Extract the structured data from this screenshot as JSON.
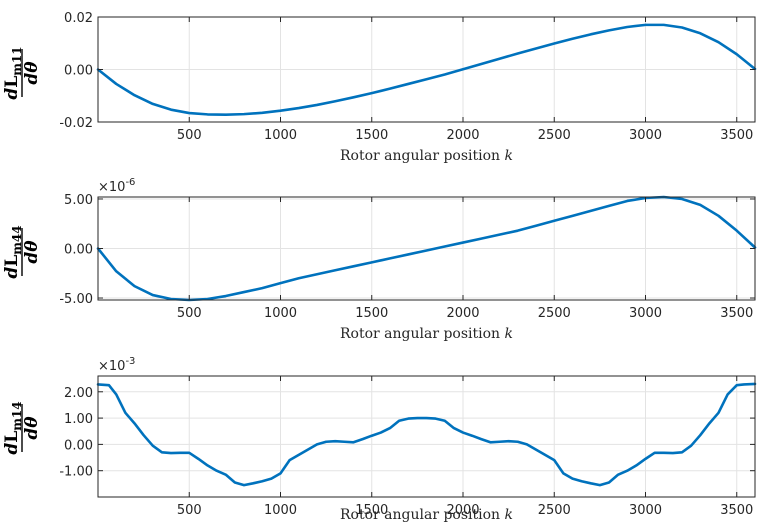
{
  "colors": {
    "line": "#0072BD",
    "axis": "#262626",
    "grid": "#e3e3e3"
  },
  "chart_data": [
    {
      "type": "line",
      "ylabel": {
        "d": "d",
        "L": "L",
        "sub": "m11",
        "denom": "dθ"
      },
      "xlabel": {
        "text": "Rotor angular position ",
        "var": "k"
      },
      "xlim": [
        0,
        3600
      ],
      "ylim": [
        -0.02,
        0.02
      ],
      "multiplier": null,
      "xticks": [
        500,
        1000,
        1500,
        2000,
        2500,
        3000,
        3500
      ],
      "yticks": [
        -0.02,
        0.0,
        0.02
      ],
      "ytick_labels": [
        "-0.02",
        "0.00",
        "0.02"
      ],
      "grid": true,
      "series": [
        {
          "x": [
            0,
            100,
            200,
            300,
            400,
            500,
            600,
            700,
            800,
            900,
            1000,
            1100,
            1200,
            1300,
            1400,
            1500,
            1600,
            1700,
            1800,
            1900,
            2000,
            2100,
            2200,
            2300,
            2400,
            2500,
            2600,
            2700,
            2800,
            2900,
            3000,
            3100,
            3200,
            3300,
            3400,
            3500,
            3600
          ],
          "y": [
            0.0,
            -0.0055,
            -0.0098,
            -0.0131,
            -0.0153,
            -0.0166,
            -0.0171,
            -0.0172,
            -0.017,
            -0.0165,
            -0.0157,
            -0.0147,
            -0.0135,
            -0.0121,
            -0.0106,
            -0.009,
            -0.0073,
            -0.0055,
            -0.0037,
            -0.0019,
            0.0001,
            0.0021,
            0.0041,
            0.0061,
            0.008,
            0.0099,
            0.0117,
            0.0134,
            0.0149,
            0.0162,
            0.017,
            0.017,
            0.016,
            0.0138,
            0.0104,
            0.0058,
            0.0002
          ]
        }
      ]
    },
    {
      "type": "line",
      "ylabel": {
        "d": "d",
        "L": "L",
        "sub": "m44",
        "denom": "dθ"
      },
      "xlabel": {
        "text": "Rotor angular position ",
        "var": "k"
      },
      "xlim": [
        0,
        3600
      ],
      "ylim": [
        -5.2e-06,
        5.2e-06
      ],
      "multiplier": {
        "base": "×10",
        "exp": "-6"
      },
      "xticks": [
        500,
        1000,
        1500,
        2000,
        2500,
        3000,
        3500
      ],
      "yticks": [
        -5e-06,
        0.0,
        5e-06
      ],
      "ytick_labels": [
        "-5.00",
        "0.00",
        "5.00"
      ],
      "grid": true,
      "series": [
        {
          "x": [
            0,
            100,
            200,
            300,
            400,
            500,
            600,
            700,
            800,
            900,
            1000,
            1100,
            1200,
            1300,
            1400,
            1500,
            1600,
            1700,
            1800,
            1900,
            2000,
            2100,
            2200,
            2300,
            2400,
            2500,
            2600,
            2700,
            2800,
            2900,
            3000,
            3100,
            3200,
            3300,
            3400,
            3500,
            3600
          ],
          "y": [
            0.0,
            -2.3e-06,
            -3.8e-06,
            -4.7e-06,
            -5.1e-06,
            -5.2e-06,
            -5.1e-06,
            -4.8e-06,
            -4.4e-06,
            -4e-06,
            -3.5e-06,
            -3e-06,
            -2.6e-06,
            -2.2e-06,
            -1.8e-06,
            -1.4e-06,
            -1e-06,
            -6e-07,
            -2e-07,
            2e-07,
            6e-07,
            1e-06,
            1.4e-06,
            1.8e-06,
            2.3e-06,
            2.8e-06,
            3.3e-06,
            3.8e-06,
            4.3e-06,
            4.8e-06,
            5.1e-06,
            5.2e-06,
            5e-06,
            4.4e-06,
            3.3e-06,
            1.8e-06,
            1e-07
          ]
        }
      ]
    },
    {
      "type": "line",
      "ylabel": {
        "d": "d",
        "L": "L",
        "sub": "m14",
        "denom": "dθ"
      },
      "xlabel": {
        "text": "Rotor angular position ",
        "var": "k"
      },
      "xlim": [
        0,
        3600
      ],
      "ylim": [
        -0.002,
        0.0026
      ],
      "multiplier": {
        "base": "×10",
        "exp": "-3"
      },
      "xticks": [
        500,
        1000,
        1500,
        2000,
        2500,
        3000,
        3500
      ],
      "yticks": [
        -0.001,
        0.0,
        0.001,
        0.002
      ],
      "ytick_labels": [
        "-1.00",
        "0.00",
        "1.00",
        "2.00"
      ],
      "grid": true,
      "series": [
        {
          "x": [
            0,
            60,
            100,
            150,
            200,
            250,
            300,
            350,
            400,
            450,
            500,
            550,
            600,
            650,
            700,
            750,
            800,
            850,
            900,
            950,
            1000,
            1050,
            1100,
            1150,
            1200,
            1250,
            1300,
            1350,
            1400,
            1450,
            1500,
            1550,
            1600,
            1650,
            1700,
            1750,
            1800,
            1850,
            1900,
            1950,
            2000,
            2050,
            2100,
            2150,
            2200,
            2250,
            2300,
            2350,
            2400,
            2450,
            2500,
            2550,
            2600,
            2650,
            2700,
            2750,
            2800,
            2850,
            2900,
            2950,
            3000,
            3050,
            3100,
            3150,
            3200,
            3250,
            3300,
            3350,
            3400,
            3450,
            3500,
            3540,
            3600
          ],
          "y": [
            0.00228,
            0.00225,
            0.0019,
            0.0012,
            0.0008,
            0.00035,
            -5e-05,
            -0.0003,
            -0.00033,
            -0.00032,
            -0.00032,
            -0.00055,
            -0.0008,
            -0.001,
            -0.00115,
            -0.00145,
            -0.00155,
            -0.00148,
            -0.0014,
            -0.0013,
            -0.0011,
            -0.0006,
            -0.0004,
            -0.0002,
            0.0,
            0.0001,
            0.00012,
            0.0001,
            8e-05,
            0.0002,
            0.00033,
            0.00045,
            0.00062,
            0.0009,
            0.00098,
            0.001,
            0.001,
            0.00098,
            0.0009,
            0.00062,
            0.00045,
            0.00033,
            0.0002,
            8e-05,
            0.0001,
            0.00012,
            0.0001,
            0.0,
            -0.0002,
            -0.0004,
            -0.0006,
            -0.0011,
            -0.0013,
            -0.0014,
            -0.00148,
            -0.00155,
            -0.00145,
            -0.00115,
            -0.001,
            -0.0008,
            -0.00055,
            -0.00032,
            -0.00032,
            -0.00033,
            -0.0003,
            -5e-05,
            0.00035,
            0.0008,
            0.0012,
            0.0019,
            0.00225,
            0.00228,
            0.0023
          ]
        }
      ]
    }
  ]
}
